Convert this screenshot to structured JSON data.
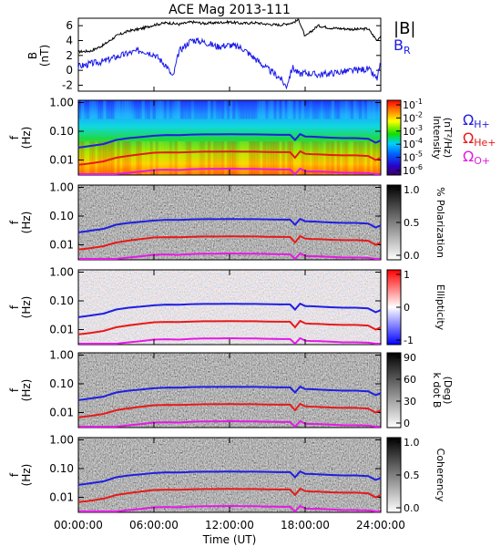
{
  "figure": {
    "title": "ACE Mag 2013-111",
    "xlabel": "Time (UT)",
    "xticks": [
      "00:00:00",
      "06:00:00",
      "12:00:00",
      "18:00:00",
      "24:00:00"
    ],
    "freq_ticks": [
      "1.00",
      "0.10",
      "0.01"
    ],
    "freq_axis_label": [
      "f",
      "(Hz)"
    ]
  },
  "colors": {
    "B_total": "#000000",
    "B_R": "#1a1ae6",
    "omega_H": "#1f1fe0",
    "omega_He": "#e61a1a",
    "omega_O": "#e619e6"
  },
  "chart_data": [
    {
      "type": "line",
      "panel": "B",
      "ylabel": [
        "B",
        "(nT)"
      ],
      "yticks": [
        "6",
        "4",
        "2",
        "0",
        "-2"
      ],
      "ylim": [
        -2.8,
        7
      ],
      "xlim": [
        0,
        24
      ],
      "x_unit": "hours UT",
      "series": [
        {
          "name": "|B|",
          "x": [
            0,
            1,
            2,
            3,
            4,
            5,
            6,
            7,
            8,
            9,
            10,
            11,
            12,
            13,
            14,
            15,
            16,
            17,
            17.5,
            18,
            19,
            20,
            21,
            22,
            23,
            23.7,
            24
          ],
          "values": [
            2.5,
            2.6,
            3.4,
            4.6,
            5.3,
            5.6,
            6.1,
            6.4,
            6.2,
            6.5,
            6.3,
            6.4,
            6.5,
            6.3,
            6.4,
            6.2,
            6.1,
            6.4,
            6.8,
            4.5,
            6.0,
            5.7,
            5.6,
            5.5,
            5.6,
            4.0,
            4.7
          ]
        },
        {
          "name": "B_R",
          "x": [
            0,
            1,
            2,
            3,
            4,
            5,
            6,
            7,
            7.5,
            8,
            9,
            10,
            11,
            12,
            13,
            14,
            15,
            16,
            16.5,
            17,
            17.5,
            18,
            19,
            20,
            21,
            22,
            23,
            23.7,
            24
          ],
          "values": [
            0.5,
            0.9,
            1.2,
            1.8,
            2.3,
            2.7,
            2.2,
            0.6,
            -1.0,
            2.6,
            4.1,
            3.8,
            3.2,
            3.4,
            3.0,
            1.6,
            0.2,
            -1.0,
            -2.2,
            0.4,
            -0.5,
            -0.3,
            -0.6,
            -0.4,
            -0.2,
            0.0,
            0.2,
            -1.2,
            1.0
          ]
        }
      ],
      "labels": {
        "B": "|B|",
        "BR_main": "B",
        "BR_sub": "R"
      }
    },
    {
      "type": "heatmap",
      "panel": "intensity",
      "colorbar_ticks": [
        "-1",
        "-2",
        "-3",
        "-4",
        "-5",
        "-6"
      ],
      "colorbar_tick_base": "10",
      "colorbar_label": [
        "Intensity",
        "(nT²/Hz)"
      ],
      "ylim_hz": [
        0.003,
        1.2
      ],
      "y_scale": "log",
      "gyrofrequency_labels": [
        {
          "main": "Ω",
          "sub": "H+"
        },
        {
          "main": "Ω",
          "sub": "He+"
        },
        {
          "main": "Ω",
          "sub": "O+"
        }
      ]
    },
    {
      "type": "heatmap",
      "panel": "polarization",
      "colorbar_ticks": [
        "1.0",
        "0.5",
        "0.0"
      ],
      "colorbar_label": "% Polarization",
      "colorscale": "grayscale"
    },
    {
      "type": "heatmap",
      "panel": "ellipticity",
      "colorbar_ticks": [
        "1",
        "0",
        "-1"
      ],
      "colorbar_label": "Ellipticity",
      "colorscale": "blue-white-red"
    },
    {
      "type": "heatmap",
      "panel": "k_dot_B",
      "colorbar_ticks": [
        "90",
        "60",
        "30",
        "0"
      ],
      "colorbar_label": [
        "k dot B",
        "(Deg)"
      ],
      "colorscale": "grayscale"
    },
    {
      "type": "heatmap",
      "panel": "coherency",
      "colorbar_ticks": [
        "1.0",
        "0.5",
        "0.0"
      ],
      "colorbar_label": "Coherency",
      "colorscale": "grayscale"
    }
  ],
  "gyrofrequency_hz": {
    "x": [
      0,
      0.5,
      1,
      2,
      3,
      4,
      5,
      6,
      7,
      8,
      9,
      10,
      11,
      12,
      13,
      14,
      15,
      16,
      16.8,
      17.2,
      17.6,
      18,
      18.5,
      19,
      20,
      21,
      22,
      23,
      23.6,
      24
    ],
    "H": [
      0.027,
      0.029,
      0.031,
      0.036,
      0.05,
      0.058,
      0.063,
      0.07,
      0.074,
      0.073,
      0.077,
      0.078,
      0.078,
      0.079,
      0.078,
      0.078,
      0.077,
      0.075,
      0.075,
      0.05,
      0.08,
      0.066,
      0.065,
      0.063,
      0.06,
      0.058,
      0.058,
      0.055,
      0.04,
      0.048
    ],
    "He": [
      0.0068,
      0.0072,
      0.0077,
      0.009,
      0.012,
      0.014,
      0.016,
      0.018,
      0.0185,
      0.0182,
      0.019,
      0.0195,
      0.0195,
      0.0198,
      0.0195,
      0.0195,
      0.019,
      0.0188,
      0.0188,
      0.012,
      0.02,
      0.0165,
      0.016,
      0.0158,
      0.015,
      0.0145,
      0.0145,
      0.0138,
      0.01,
      0.012
    ],
    "O": [
      0.0017,
      0.0018,
      0.0019,
      0.0023,
      0.0032,
      0.0036,
      0.004,
      0.0045,
      0.0046,
      0.0045,
      0.0048,
      0.0049,
      0.0049,
      0.005,
      0.0049,
      0.0049,
      0.0048,
      0.0047,
      0.0047,
      0.003,
      0.005,
      0.0041,
      0.004,
      0.004,
      0.0038,
      0.0036,
      0.0036,
      0.0035,
      0.0026,
      0.003
    ]
  }
}
